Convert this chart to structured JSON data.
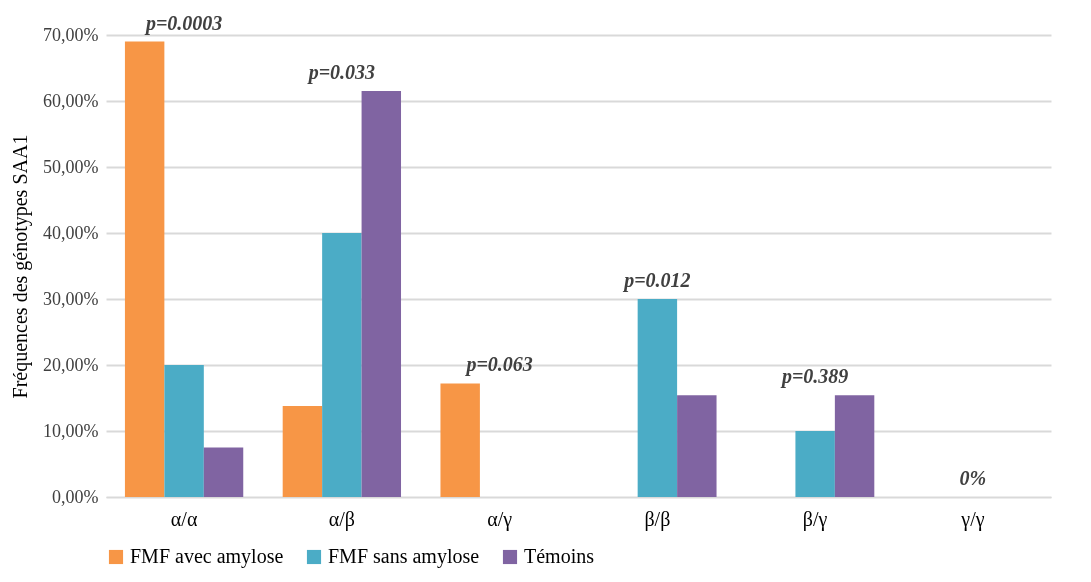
{
  "chart_data": {
    "type": "bar",
    "ylabel": "Fréquences des génotypes SAA1",
    "categories": [
      "α/α",
      "α/β",
      "α/γ",
      "β/β",
      "β/γ",
      "γ/γ"
    ],
    "series": [
      {
        "name": "FMF avec amylose",
        "color": "#f79646",
        "values": [
          69,
          13.8,
          17.2,
          0,
          0,
          0
        ]
      },
      {
        "name": "FMF sans amylose",
        "color": "#4bacc6",
        "values": [
          20,
          40,
          0,
          30,
          10,
          0
        ]
      },
      {
        "name": "Témoins",
        "color": "#8064a2",
        "values": [
          7.5,
          61.5,
          0,
          15.4,
          15.4,
          0
        ]
      }
    ],
    "ylim": [
      0,
      70
    ],
    "yticks": [
      {
        "value": 0,
        "label": "0,00%"
      },
      {
        "value": 10,
        "label": "10,00%"
      },
      {
        "value": 20,
        "label": "20,00%"
      },
      {
        "value": 30,
        "label": "30,00%"
      },
      {
        "value": 40,
        "label": "40,00%"
      },
      {
        "value": 50,
        "label": "50,00%"
      },
      {
        "value": 60,
        "label": "60,00%"
      },
      {
        "value": 70,
        "label": "70,00%"
      }
    ],
    "grid": "y",
    "legend": "bottom",
    "annotations": [
      "p=0.0003",
      "p=0.033",
      "p=0.063",
      "p=0.012",
      "p=0.389",
      "0%"
    ]
  }
}
